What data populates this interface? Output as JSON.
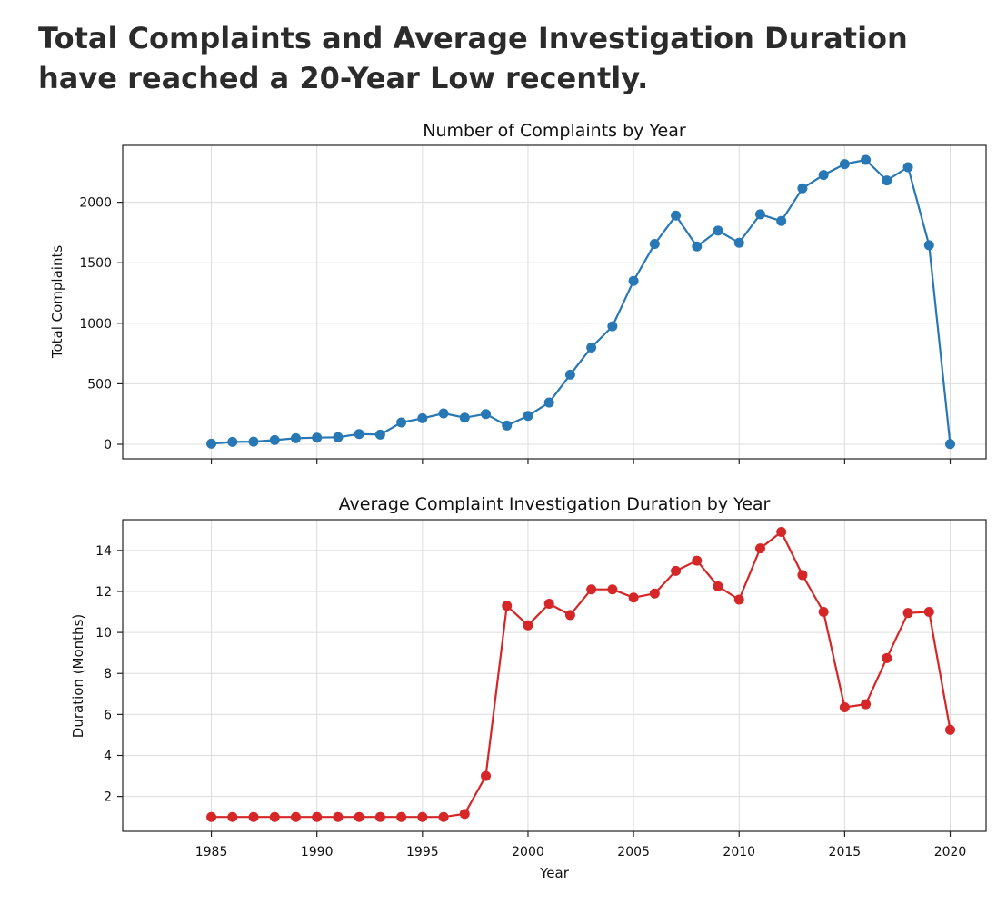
{
  "headline": "Total Complaints and Average Investigation Duration have reached a 20-Year Low recently.",
  "chart_data": [
    {
      "type": "line",
      "title": "Number of Complaints by Year",
      "xlabel": "",
      "ylabel": "Total Complaints",
      "color": "#2878b5",
      "x": [
        1985,
        1986,
        1987,
        1988,
        1989,
        1990,
        1991,
        1992,
        1993,
        1994,
        1995,
        1996,
        1997,
        1998,
        1999,
        2000,
        2001,
        2002,
        2003,
        2004,
        2005,
        2006,
        2007,
        2008,
        2009,
        2010,
        2011,
        2012,
        2013,
        2014,
        2015,
        2016,
        2017,
        2018,
        2019,
        2020
      ],
      "series": [
        {
          "values": [
            5,
            20,
            22,
            35,
            50,
            55,
            58,
            85,
            80,
            180,
            215,
            255,
            220,
            250,
            155,
            235,
            345,
            575,
            800,
            975,
            1350,
            1655,
            1890,
            1635,
            1765,
            1665,
            1900,
            1845,
            2115,
            2225,
            2315,
            2350,
            2180,
            2290,
            1645,
            2
          ]
        }
      ],
      "xlim": [
        1980.8,
        2021.7
      ],
      "ylim": [
        -120,
        2470
      ],
      "xticks": [
        1985,
        1990,
        1995,
        2000,
        2005,
        2010,
        2015,
        2020
      ],
      "yticks": [
        0,
        500,
        1000,
        1500,
        2000
      ],
      "grid": true,
      "legend": "none"
    },
    {
      "type": "line",
      "title": "Average Complaint Investigation Duration by Year",
      "xlabel": "Year",
      "ylabel": "Duration (Months)",
      "color": "#d62728",
      "x": [
        1985,
        1986,
        1987,
        1988,
        1989,
        1990,
        1991,
        1992,
        1993,
        1994,
        1995,
        1996,
        1997,
        1998,
        1999,
        2000,
        2001,
        2002,
        2003,
        2004,
        2005,
        2006,
        2007,
        2008,
        2009,
        2010,
        2011,
        2012,
        2013,
        2014,
        2015,
        2016,
        2017,
        2018,
        2019,
        2020
      ],
      "series": [
        {
          "values": [
            1,
            1,
            1,
            1,
            1,
            1,
            1,
            1,
            1,
            1,
            1,
            1,
            1.15,
            3,
            11.3,
            10.35,
            11.4,
            10.85,
            12.1,
            12.1,
            11.7,
            11.9,
            13,
            13.5,
            12.25,
            11.6,
            14.1,
            14.9,
            12.8,
            11,
            6.35,
            6.5,
            8.75,
            10.95,
            11,
            5.25
          ]
        }
      ],
      "xlim": [
        1980.8,
        2021.7
      ],
      "ylim": [
        0.3,
        15.5
      ],
      "xticks": [
        1985,
        1990,
        1995,
        2000,
        2005,
        2010,
        2015,
        2020
      ],
      "yticks": [
        2,
        4,
        6,
        8,
        10,
        12,
        14
      ],
      "grid": true,
      "legend": "none"
    }
  ]
}
